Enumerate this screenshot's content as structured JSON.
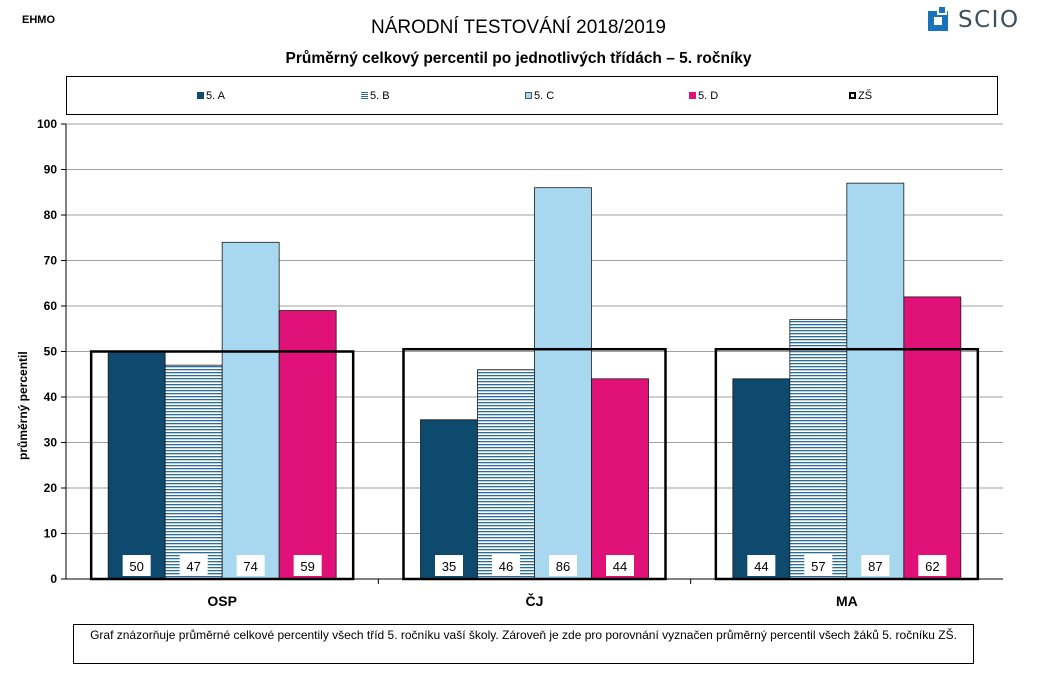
{
  "corner_label": "EHMO",
  "title": "NÁRODNÍ TESTOVÁNÍ 2018/2019",
  "subtitle": "Průměrný celkový percentil po jednotlivých třídách – 5. ročníky",
  "logo": {
    "text": "SCIO",
    "icon": "scio-square-icon",
    "color": "#1a73b8"
  },
  "footnote": "Graf znázorňuje průměrné celkové percentily všech tříd 5. ročníku vaší školy. Zároveň je zde pro porovnání vyznačen průměrný percentil všech žáků  5. ročníku ZŠ.",
  "chart_data": {
    "type": "bar",
    "categories": [
      "OSP",
      "ČJ",
      "MA"
    ],
    "series": [
      {
        "name": "5. A",
        "values": [
          50,
          35,
          44
        ],
        "color": "#0e4a6e",
        "pattern": "solid"
      },
      {
        "name": "5. B",
        "values": [
          47,
          46,
          57
        ],
        "color": "#2a6d99",
        "pattern": "horizontal-stripes"
      },
      {
        "name": "5. C",
        "values": [
          74,
          86,
          87
        ],
        "color": "#a8d8f0",
        "pattern": "solid"
      },
      {
        "name": "5. D",
        "values": [
          59,
          44,
          62
        ],
        "color": "#e0127a",
        "pattern": "solid"
      }
    ],
    "reference": {
      "name": "ZŠ",
      "values": [
        50,
        50.5,
        50.5
      ],
      "style": "outline"
    },
    "value_labels": [
      [
        "50",
        "35",
        "44"
      ],
      [
        "47",
        "46",
        "57"
      ],
      [
        "74",
        "86",
        "87"
      ],
      [
        "59",
        "44",
        "62"
      ]
    ],
    "ylabel": "průměrný percentil",
    "ylim": [
      0,
      100
    ],
    "yticks": [
      0,
      10,
      20,
      30,
      40,
      50,
      60,
      70,
      80,
      90,
      100
    ],
    "grid": true,
    "legend": "top"
  }
}
